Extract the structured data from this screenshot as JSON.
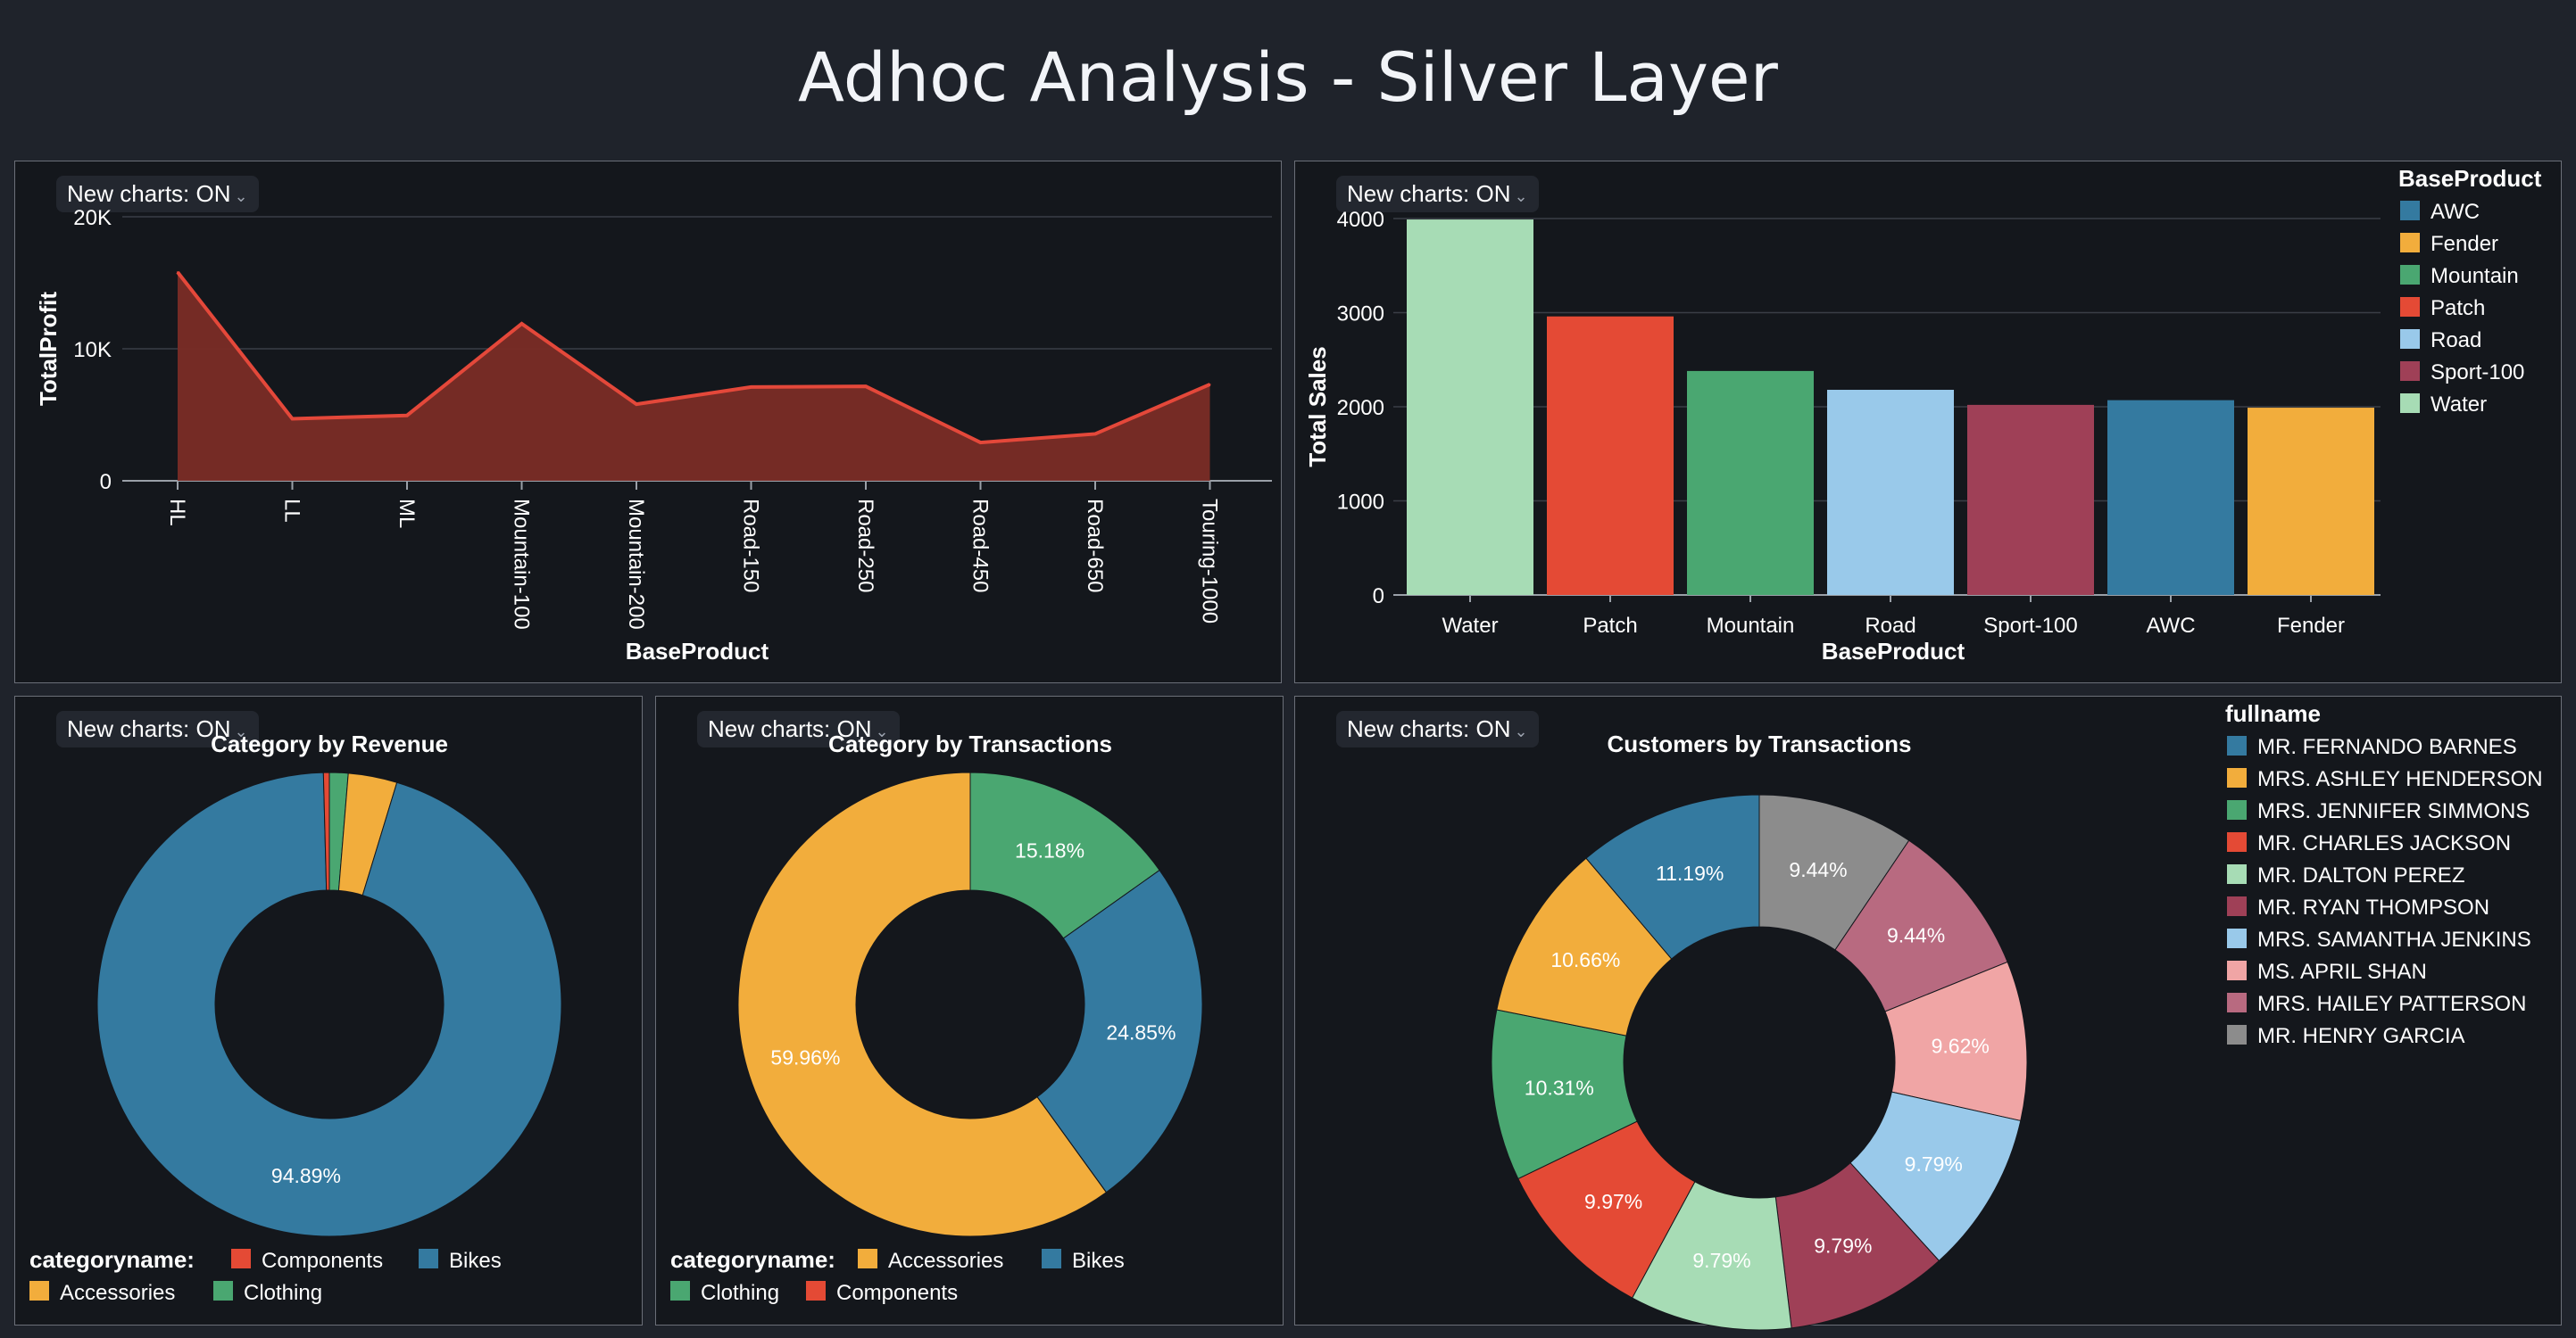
{
  "page": {
    "title": "Adhoc Analysis - Silver Layer"
  },
  "badges": {
    "label": "New charts: ON"
  },
  "chart_data": [
    {
      "type": "area",
      "title": "",
      "xlabel": "BaseProduct",
      "ylabel": "TotalProfit",
      "ylim": [
        0,
        20000
      ],
      "yticks": [
        "0",
        "10K",
        "20K"
      ],
      "grid": true,
      "color": "#e4483a",
      "categories": [
        "HL",
        "LL",
        "ML",
        "Mountain-100",
        "Mountain-200",
        "Road-150",
        "Road-250",
        "Road-450",
        "Road-650",
        "Touring-1000"
      ],
      "values": [
        15800,
        4700,
        4950,
        11900,
        5800,
        7100,
        7150,
        2900,
        3550,
        7300
      ]
    },
    {
      "type": "bar",
      "title": "",
      "xlabel": "BaseProduct",
      "ylabel": "Total Sales",
      "ylim": [
        0,
        4000
      ],
      "yticks": [
        "0",
        "1000",
        "2000",
        "3000",
        "4000"
      ],
      "grid": true,
      "legend_title": "BaseProduct",
      "legend_position": "top-right",
      "legend": [
        {
          "name": "AWC",
          "color": "#347aa0"
        },
        {
          "name": "Fender",
          "color": "#f2ad3c"
        },
        {
          "name": "Mountain",
          "color": "#4aa771"
        },
        {
          "name": "Patch",
          "color": "#e44a35"
        },
        {
          "name": "Road",
          "color": "#99c9ea"
        },
        {
          "name": "Sport-100",
          "color": "#9f4057"
        },
        {
          "name": "Water",
          "color": "#a7dcb5"
        }
      ],
      "categories": [
        "Water",
        "Patch",
        "Mountain",
        "Road",
        "Sport-100",
        "AWC",
        "Fender"
      ],
      "values": [
        3990,
        2960,
        2380,
        2180,
        2020,
        2070,
        1990
      ],
      "colors": [
        "#a7dcb5",
        "#e44a35",
        "#4aa771",
        "#99c9ea",
        "#9f4057",
        "#347aa0",
        "#f2ad3c"
      ]
    },
    {
      "type": "pie",
      "title": "Category by Revenue",
      "legend_title": "categoryname:",
      "legend_position": "bottom-left",
      "legend": [
        {
          "name": "Components",
          "color": "#e44a35"
        },
        {
          "name": "Bikes",
          "color": "#347aa0"
        },
        {
          "name": "Accessories",
          "color": "#f2ad3c"
        },
        {
          "name": "Clothing",
          "color": "#4aa771"
        }
      ],
      "slices": [
        {
          "name": "Clothing",
          "value": 1.3,
          "color": "#4aa771",
          "label": ""
        },
        {
          "name": "Accessories",
          "value": 3.4,
          "color": "#f2ad3c",
          "label": ""
        },
        {
          "name": "Bikes",
          "value": 94.89,
          "color": "#347aa0",
          "label": "94.89%"
        },
        {
          "name": "Components",
          "value": 0.41,
          "color": "#e44a35",
          "label": ""
        }
      ]
    },
    {
      "type": "pie",
      "title": "Category by Transactions",
      "legend_title": "categoryname:",
      "legend_position": "bottom-left",
      "legend": [
        {
          "name": "Accessories",
          "color": "#f2ad3c"
        },
        {
          "name": "Bikes",
          "color": "#347aa0"
        },
        {
          "name": "Clothing",
          "color": "#4aa771"
        },
        {
          "name": "Components",
          "color": "#e44a35"
        }
      ],
      "slices": [
        {
          "name": "Clothing",
          "value": 15.18,
          "color": "#4aa771",
          "label": "15.18%"
        },
        {
          "name": "Bikes",
          "value": 24.85,
          "color": "#347aa0",
          "label": "24.85%"
        },
        {
          "name": "Components",
          "value": 0.01,
          "color": "#e44a35",
          "label": ""
        },
        {
          "name": "Accessories",
          "value": 59.96,
          "color": "#f2ad3c",
          "label": "59.96%"
        }
      ]
    },
    {
      "type": "pie",
      "title": "Customers by Transactions",
      "legend_title": "fullname",
      "legend_position": "top-right",
      "legend": [
        {
          "name": "MR. FERNANDO BARNES",
          "color": "#347aa0"
        },
        {
          "name": "MRS. ASHLEY HENDERSON",
          "color": "#f2ad3c"
        },
        {
          "name": "MRS. JENNIFER SIMMONS",
          "color": "#4aa771"
        },
        {
          "name": "MR. CHARLES JACKSON",
          "color": "#e44a35"
        },
        {
          "name": "MR. DALTON PEREZ",
          "color": "#a7dcb5"
        },
        {
          "name": "MR. RYAN THOMPSON",
          "color": "#9f4057"
        },
        {
          "name": "MRS. SAMANTHA JENKINS",
          "color": "#99c9ea"
        },
        {
          "name": "MS. APRIL SHAN",
          "color": "#f0a5a5"
        },
        {
          "name": "MRS. HAILEY PATTERSON",
          "color": "#b86a80"
        },
        {
          "name": "MR. HENRY GARCIA",
          "color": "#8c8c8c"
        }
      ],
      "slices": [
        {
          "name": "MR. HENRY GARCIA",
          "value": 9.44,
          "color": "#8c8c8c",
          "label": "9.44%"
        },
        {
          "name": "MRS. HAILEY PATTERSON",
          "value": 9.44,
          "color": "#b86a80",
          "label": "9.44%"
        },
        {
          "name": "MS. APRIL SHAN",
          "value": 9.62,
          "color": "#f0a5a5",
          "label": "9.62%"
        },
        {
          "name": "MRS. SAMANTHA JENKINS",
          "value": 9.79,
          "color": "#99c9ea",
          "label": "9.79%"
        },
        {
          "name": "MR. RYAN THOMPSON",
          "value": 9.79,
          "color": "#9f4057",
          "label": "9.79%"
        },
        {
          "name": "MR. DALTON PEREZ",
          "value": 9.79,
          "color": "#a7dcb5",
          "label": "9.79%"
        },
        {
          "name": "MR. CHARLES JACKSON",
          "value": 9.97,
          "color": "#e44a35",
          "label": "9.97%"
        },
        {
          "name": "MRS. JENNIFER SIMMONS",
          "value": 10.31,
          "color": "#4aa771",
          "label": "10.31%"
        },
        {
          "name": "MRS. ASHLEY HENDERSON",
          "value": 10.66,
          "color": "#f2ad3c",
          "label": "10.66%"
        },
        {
          "name": "MR. FERNANDO BARNES",
          "value": 11.19,
          "color": "#347aa0",
          "label": "11.19%"
        }
      ]
    }
  ]
}
